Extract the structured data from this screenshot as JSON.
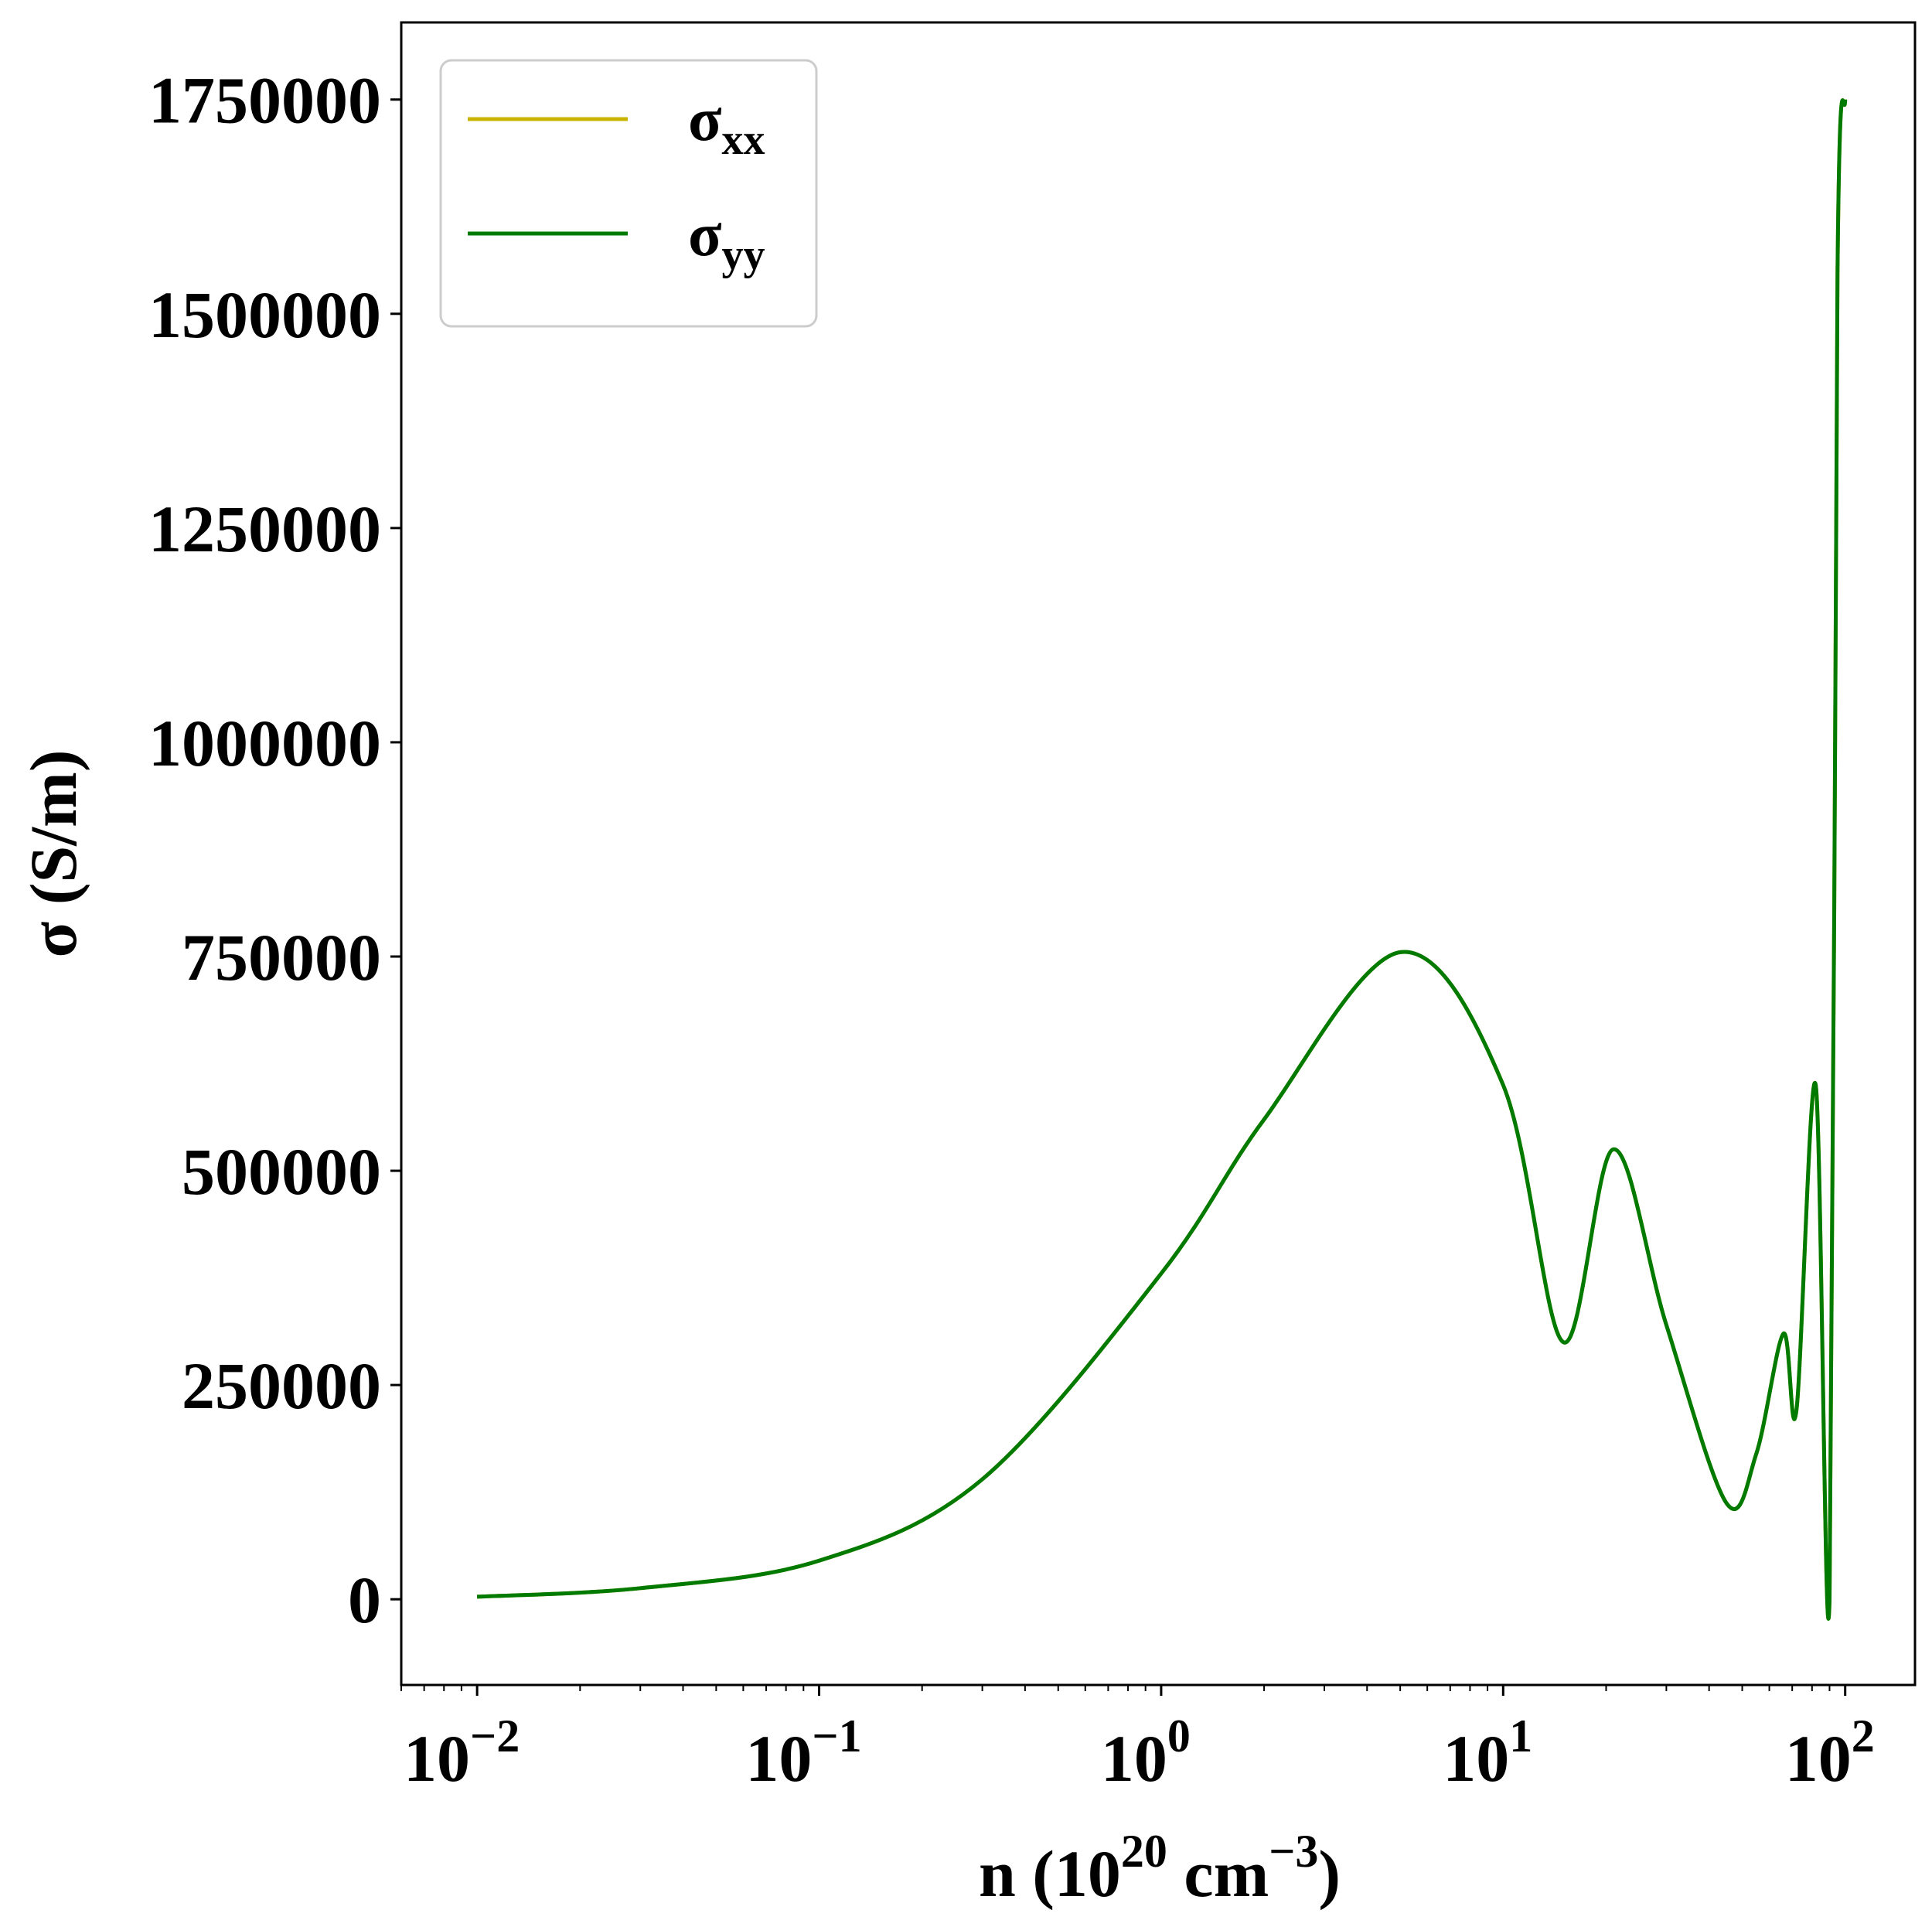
{
  "chart_data": {
    "type": "line",
    "xscale": "log",
    "xlim": [
      0.006,
      160
    ],
    "ylim": [
      -100000,
      1840000
    ],
    "xlabel": {
      "base": "n (10",
      "exp1": "20",
      "mid": " cm",
      "exp2": "−3",
      "end": ")"
    },
    "ylabel": "σ (S/m)",
    "x_ticks": [
      {
        "value": 0.01,
        "base": "10",
        "exp": "−2"
      },
      {
        "value": 0.1,
        "base": "10",
        "exp": "−1"
      },
      {
        "value": 1,
        "base": "10",
        "exp": "0"
      },
      {
        "value": 10,
        "base": "10",
        "exp": "1"
      },
      {
        "value": 100,
        "base": "10",
        "exp": "2"
      }
    ],
    "y_ticks": [
      {
        "value": 0,
        "label": "0"
      },
      {
        "value": 250000,
        "label": "250000"
      },
      {
        "value": 500000,
        "label": "500000"
      },
      {
        "value": 750000,
        "label": "750000"
      },
      {
        "value": 1000000,
        "label": "1000000"
      },
      {
        "value": 1250000,
        "label": "1250000"
      },
      {
        "value": 1500000,
        "label": "1500000"
      },
      {
        "value": 1750000,
        "label": "1750000"
      }
    ],
    "grid": false,
    "legend": {
      "position": "top-left"
    },
    "series": [
      {
        "name": "σxx",
        "label_main": "σ",
        "label_sub": "xx",
        "color": "#c8b400",
        "x": [
          0.01,
          0.03,
          0.1,
          0.3,
          1,
          2,
          5,
          10,
          15,
          21,
          30,
          45,
          55,
          66,
          72,
          82,
          90,
          95,
          100
        ],
        "y": [
          3000,
          13000,
          45000,
          140000,
          380000,
          560000,
          755000,
          600000,
          300000,
          525000,
          320000,
          112000,
          170000,
          310000,
          220000,
          600000,
          0,
          1550000,
          1750000
        ]
      },
      {
        "name": "σyy",
        "label_main": "σ",
        "label_sub": "yy",
        "color": "#007a00",
        "x": [
          0.01,
          0.03,
          0.1,
          0.3,
          1,
          2,
          5,
          10,
          15,
          21,
          30,
          45,
          55,
          66,
          72,
          82,
          90,
          95,
          100
        ],
        "y": [
          3000,
          13000,
          45000,
          140000,
          380000,
          560000,
          755000,
          600000,
          300000,
          525000,
          320000,
          112000,
          170000,
          310000,
          220000,
          600000,
          0,
          1550000,
          1750000
        ]
      }
    ]
  }
}
